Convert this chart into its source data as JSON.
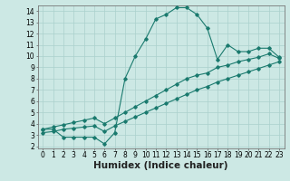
{
  "xlabel": "Humidex (Indice chaleur)",
  "ylabel": "",
  "background_color": "#cce8e4",
  "grid_color": "#aad0cc",
  "line_color": "#1a7a6e",
  "xlim": [
    -0.5,
    23.5
  ],
  "ylim": [
    1.8,
    14.5
  ],
  "xticks": [
    0,
    1,
    2,
    3,
    4,
    5,
    6,
    7,
    8,
    9,
    10,
    11,
    12,
    13,
    14,
    15,
    16,
    17,
    18,
    19,
    20,
    21,
    22,
    23
  ],
  "yticks": [
    2,
    3,
    4,
    5,
    6,
    7,
    8,
    9,
    10,
    11,
    12,
    13,
    14
  ],
  "line1_x": [
    0,
    1,
    2,
    3,
    4,
    5,
    6,
    7,
    8,
    9,
    10,
    11,
    12,
    13,
    14,
    15,
    16,
    17,
    18,
    19,
    20,
    21,
    22,
    23
  ],
  "line1_y": [
    3.5,
    3.5,
    2.8,
    2.8,
    2.8,
    2.8,
    2.2,
    3.2,
    8.0,
    10.0,
    11.5,
    13.3,
    13.7,
    14.3,
    14.3,
    13.7,
    12.5,
    9.7,
    11.0,
    10.4,
    10.4,
    10.7,
    10.7,
    9.9
  ],
  "line2_x": [
    0,
    1,
    2,
    3,
    4,
    5,
    6,
    7,
    8,
    9,
    10,
    11,
    12,
    13,
    14,
    15,
    16,
    17,
    18,
    19,
    20,
    21,
    22,
    23
  ],
  "line2_y": [
    3.5,
    3.7,
    3.9,
    4.1,
    4.3,
    4.5,
    4.0,
    4.5,
    5.0,
    5.5,
    6.0,
    6.5,
    7.0,
    7.5,
    8.0,
    8.3,
    8.5,
    9.0,
    9.2,
    9.5,
    9.7,
    9.9,
    10.2,
    9.8
  ],
  "line3_x": [
    0,
    1,
    2,
    3,
    4,
    5,
    6,
    7,
    8,
    9,
    10,
    11,
    12,
    13,
    14,
    15,
    16,
    17,
    18,
    19,
    20,
    21,
    22,
    23
  ],
  "line3_y": [
    3.2,
    3.3,
    3.5,
    3.6,
    3.7,
    3.8,
    3.3,
    3.8,
    4.2,
    4.6,
    5.0,
    5.4,
    5.8,
    6.2,
    6.6,
    7.0,
    7.3,
    7.7,
    8.0,
    8.3,
    8.6,
    8.9,
    9.2,
    9.5
  ],
  "marker_style": "D",
  "marker_size": 1.8,
  "line_width": 0.8,
  "tick_fontsize": 5.5,
  "xlabel_fontsize": 7.5
}
